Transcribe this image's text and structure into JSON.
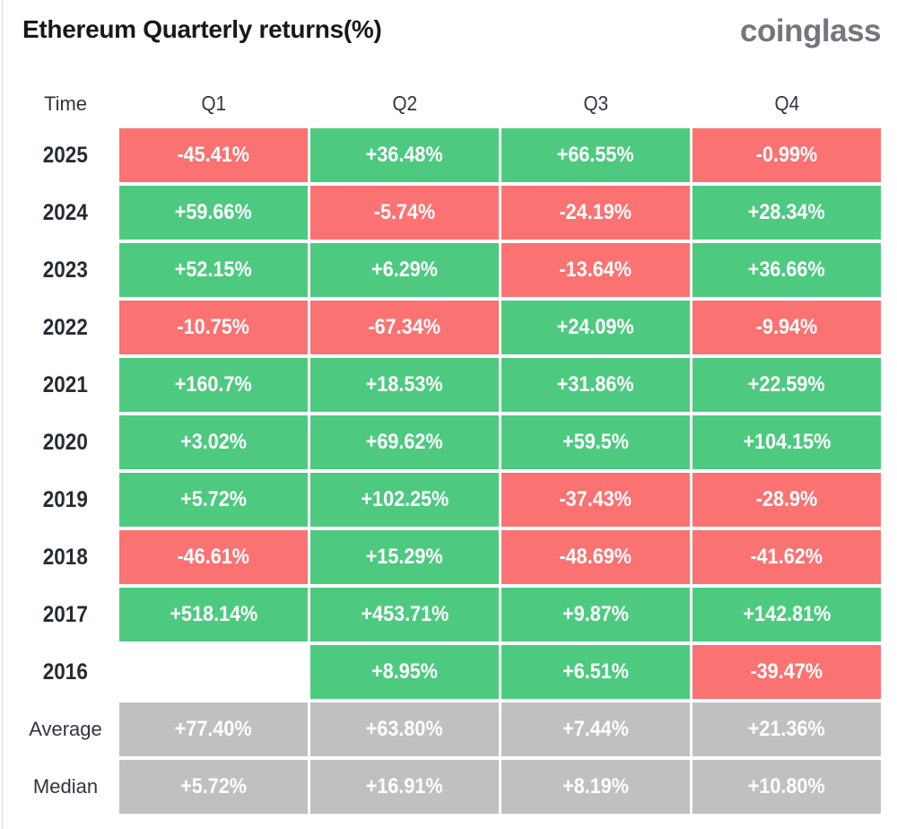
{
  "page": {
    "title": "Ethereum Quarterly returns(%)",
    "brand": "coinglass"
  },
  "colors": {
    "positive": "#4dca80",
    "negative": "#fa7272",
    "summary": "#c0c0c0",
    "cell_text": "#ffffff",
    "title_text": "#16181d",
    "brand_text": "#73767d",
    "label_text": "#2f3540"
  },
  "table": {
    "columns": [
      "Time",
      "Q1",
      "Q2",
      "Q3",
      "Q4"
    ],
    "rows": [
      {
        "label": "2025",
        "kind": "year",
        "cells": [
          "-45.41%",
          "+36.48%",
          "+66.55%",
          "-0.99%"
        ]
      },
      {
        "label": "2024",
        "kind": "year",
        "cells": [
          "+59.66%",
          "-5.74%",
          "-24.19%",
          "+28.34%"
        ]
      },
      {
        "label": "2023",
        "kind": "year",
        "cells": [
          "+52.15%",
          "+6.29%",
          "-13.64%",
          "+36.66%"
        ]
      },
      {
        "label": "2022",
        "kind": "year",
        "cells": [
          "-10.75%",
          "-67.34%",
          "+24.09%",
          "-9.94%"
        ]
      },
      {
        "label": "2021",
        "kind": "year",
        "cells": [
          "+160.7%",
          "+18.53%",
          "+31.86%",
          "+22.59%"
        ]
      },
      {
        "label": "2020",
        "kind": "year",
        "cells": [
          "+3.02%",
          "+69.62%",
          "+59.5%",
          "+104.15%"
        ]
      },
      {
        "label": "2019",
        "kind": "year",
        "cells": [
          "+5.72%",
          "+102.25%",
          "-37.43%",
          "-28.9%"
        ]
      },
      {
        "label": "2018",
        "kind": "year",
        "cells": [
          "-46.61%",
          "+15.29%",
          "-48.69%",
          "-41.62%"
        ]
      },
      {
        "label": "2017",
        "kind": "year",
        "cells": [
          "+518.14%",
          "+453.71%",
          "+9.87%",
          "+142.81%"
        ]
      },
      {
        "label": "2016",
        "kind": "year",
        "cells": [
          "",
          "+8.95%",
          "+6.51%",
          "-39.47%"
        ]
      },
      {
        "label": "Average",
        "kind": "summary",
        "cells": [
          "+77.40%",
          "+63.80%",
          "+7.44%",
          "+21.36%"
        ]
      },
      {
        "label": "Median",
        "kind": "summary",
        "cells": [
          "+5.72%",
          "+16.91%",
          "+8.19%",
          "+10.80%"
        ]
      }
    ]
  },
  "chart_data": {
    "type": "heatmap",
    "title": "Ethereum Quarterly returns(%)",
    "columns": [
      "Q1",
      "Q2",
      "Q3",
      "Q4"
    ],
    "rows": [
      "2025",
      "2024",
      "2023",
      "2022",
      "2021",
      "2020",
      "2019",
      "2018",
      "2017",
      "2016",
      "Average",
      "Median"
    ],
    "values_pct": [
      [
        -45.41,
        36.48,
        66.55,
        -0.99
      ],
      [
        59.66,
        -5.74,
        -24.19,
        28.34
      ],
      [
        52.15,
        6.29,
        -13.64,
        36.66
      ],
      [
        -10.75,
        -67.34,
        24.09,
        -9.94
      ],
      [
        160.7,
        18.53,
        31.86,
        22.59
      ],
      [
        3.02,
        69.62,
        59.5,
        104.15
      ],
      [
        5.72,
        102.25,
        -37.43,
        -28.9
      ],
      [
        -46.61,
        15.29,
        -48.69,
        -41.62
      ],
      [
        518.14,
        453.71,
        9.87,
        142.81
      ],
      [
        null,
        8.95,
        6.51,
        -39.47
      ],
      [
        77.4,
        63.8,
        7.44,
        21.36
      ],
      [
        5.72,
        16.91,
        8.19,
        10.8
      ]
    ],
    "color_rule": "positive cells green, negative cells red, Average/Median rows gray, missing data blank",
    "legend": "none",
    "grid": "off"
  }
}
